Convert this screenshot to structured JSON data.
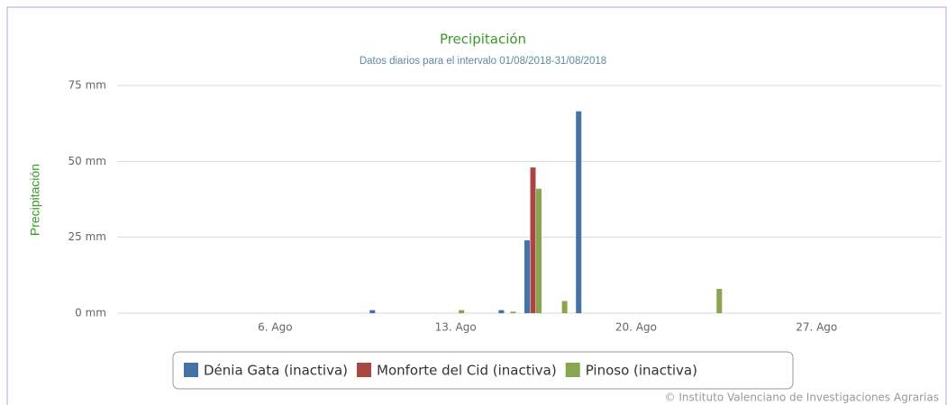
{
  "chart_data": {
    "type": "bar",
    "title": "Precipitación",
    "subtitle": "Datos diarios para el intervalo 01/08/2018-31/08/2018",
    "y_axis_label": "Precipitación",
    "credits": "© Instituto Valenciano de Investigaciones Agrarias",
    "categories": [
      null,
      null,
      null,
      null,
      null,
      "6. Ago",
      null,
      null,
      null,
      null,
      null,
      null,
      "13. Ago",
      null,
      null,
      null,
      null,
      null,
      null,
      "20. Ago",
      null,
      null,
      null,
      null,
      null,
      null,
      "27. Ago",
      null,
      null,
      null,
      null
    ],
    "series": [
      {
        "name": "Dénia Gata (inactiva)",
        "color": "#4572a7",
        "values": [
          0,
          0,
          0,
          0,
          0,
          0,
          0,
          0,
          0,
          1,
          0,
          0,
          0,
          0,
          1,
          24,
          0,
          66.5,
          0,
          0,
          0,
          0,
          0,
          0,
          0,
          0,
          0,
          0,
          0,
          0,
          0
        ]
      },
      {
        "name": "Monforte del Cid (inactiva)",
        "color": "#aa4643",
        "values": [
          0,
          0,
          0,
          0,
          0,
          0,
          0,
          0,
          0,
          0,
          0,
          0,
          0,
          0,
          0,
          48,
          0,
          0,
          0,
          0,
          0,
          0,
          0,
          0,
          0,
          0,
          0,
          0,
          0,
          0,
          0
        ]
      },
      {
        "name": "Pinoso (inactiva)",
        "color": "#89a54e",
        "values": [
          0,
          0,
          0,
          0,
          0,
          0,
          0,
          0,
          0,
          0,
          0,
          0,
          1,
          0,
          0.5,
          41,
          4,
          0,
          0,
          0,
          0,
          0,
          8,
          0,
          0,
          0,
          0,
          0,
          0,
          0,
          0
        ]
      }
    ],
    "ylim": [
      0,
      75
    ],
    "yticks": [
      {
        "value": 0,
        "label": "0 mm"
      },
      {
        "value": 25,
        "label": "25 mm"
      },
      {
        "value": 50,
        "label": "50 mm"
      },
      {
        "value": 75,
        "label": "75 mm"
      }
    ],
    "grid": true,
    "legend": "bottom"
  }
}
